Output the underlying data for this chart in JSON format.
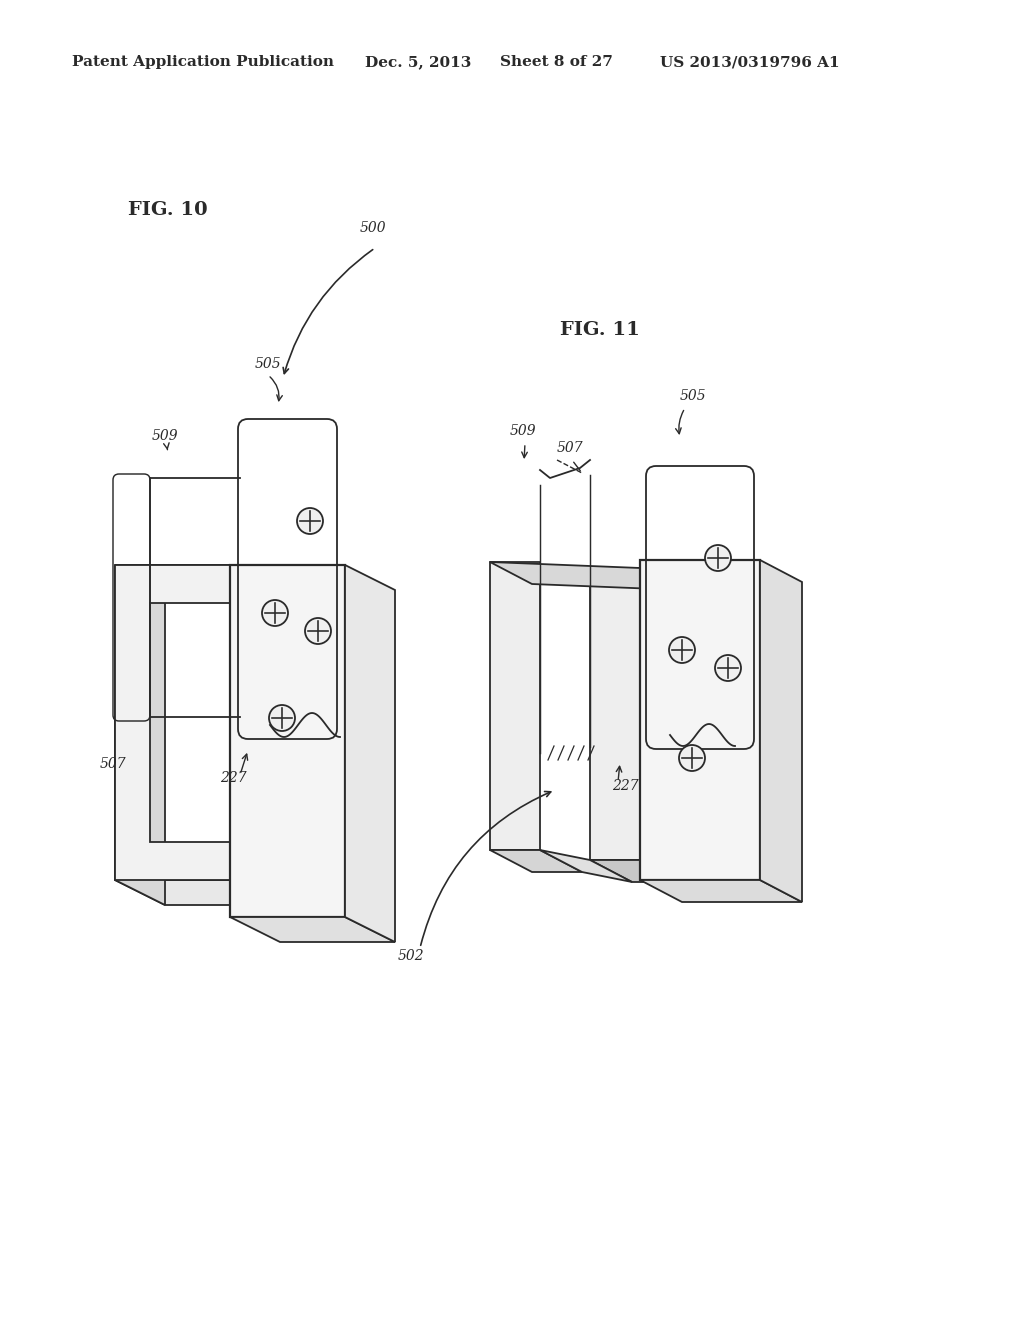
{
  "background_color": "#ffffff",
  "header_text": "Patent Application Publication",
  "header_date": "Dec. 5, 2013",
  "header_sheet": "Sheet 8 of 27",
  "header_patent": "US 2013/0319796 A1",
  "fig10_label": "FIG. 10",
  "fig11_label": "FIG. 11",
  "ref_500": "500",
  "ref_502": "502",
  "ref_505_1": "505",
  "ref_505_2": "505",
  "ref_507_1": "507",
  "ref_507_2": "507",
  "ref_509_1": "509",
  "ref_509_2": "509",
  "ref_227_1": "227",
  "ref_227_2": "227"
}
